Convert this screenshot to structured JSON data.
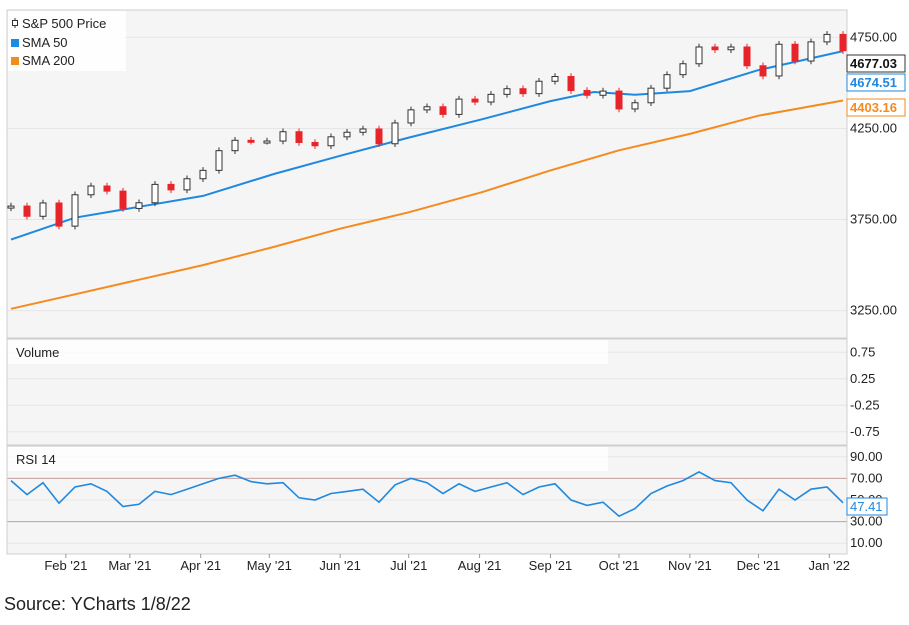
{
  "source_note": "Source: YCharts 1/8/22",
  "colors": {
    "price_up": "#333333",
    "price_down": "#e8242b",
    "sma50": "#1f88e0",
    "sma200": "#f58a1f",
    "rsi": "#1f88e0",
    "panel_bg": "#f5f5f5",
    "grid": "#e6e6e6",
    "rsi_ref": "#c9a0a0"
  },
  "x_axis_labels": [
    "Feb '21",
    "Mar '21",
    "Apr '21",
    "May '21",
    "Jun '21",
    "Jul '21",
    "Aug '21",
    "Sep '21",
    "Oct '21",
    "Nov '21",
    "Dec '21",
    "Jan '22"
  ],
  "chart_data": [
    {
      "type": "line",
      "panel": "price",
      "legend": [
        {
          "name": "S&P 500 Price",
          "icon": "candlestick-icon"
        },
        {
          "name": "SMA 50",
          "color": "#1f88e0"
        },
        {
          "name": "SMA 200",
          "color": "#f58a1f"
        }
      ],
      "y_ticks": [
        "4750.00",
        "4250.00",
        "3750.00",
        "3250.00"
      ],
      "ylim": [
        3100,
        4900
      ],
      "last_values": {
        "price": "4677.03",
        "sma50": "4674.51",
        "sma200": "4403.16"
      },
      "x_domain": [
        "2021-01-08",
        "2022-01-07"
      ],
      "series": [
        {
          "name": "S&P 500 Price",
          "points": [
            [
              "2021-01-08",
              3824
            ],
            [
              "2021-01-15",
              3768
            ],
            [
              "2021-01-22",
              3841
            ],
            [
              "2021-01-29",
              3714
            ],
            [
              "2021-02-05",
              3886
            ],
            [
              "2021-02-12",
              3934
            ],
            [
              "2021-02-19",
              3906
            ],
            [
              "2021-02-26",
              3811
            ],
            [
              "2021-03-05",
              3842
            ],
            [
              "2021-03-12",
              3943
            ],
            [
              "2021-03-19",
              3913
            ],
            [
              "2021-03-26",
              3974
            ],
            [
              "2021-04-02",
              4020
            ],
            [
              "2021-04-09",
              4128
            ],
            [
              "2021-04-16",
              4185
            ],
            [
              "2021-04-23",
              4180
            ],
            [
              "2021-04-30",
              4181
            ],
            [
              "2021-05-07",
              4232
            ],
            [
              "2021-05-14",
              4173
            ],
            [
              "2021-05-21",
              4155
            ],
            [
              "2021-05-28",
              4204
            ],
            [
              "2021-06-04",
              4229
            ],
            [
              "2021-06-11",
              4247
            ],
            [
              "2021-06-18",
              4166
            ],
            [
              "2021-06-25",
              4280
            ],
            [
              "2021-07-02",
              4352
            ],
            [
              "2021-07-09",
              4369
            ],
            [
              "2021-07-16",
              4327
            ],
            [
              "2021-07-23",
              4411
            ],
            [
              "2021-07-30",
              4395
            ],
            [
              "2021-08-06",
              4437
            ],
            [
              "2021-08-13",
              4468
            ],
            [
              "2021-08-20",
              4441
            ],
            [
              "2021-08-27",
              4509
            ],
            [
              "2021-09-03",
              4535
            ],
            [
              "2021-09-10",
              4458
            ],
            [
              "2021-09-17",
              4432
            ],
            [
              "2021-09-24",
              4455
            ],
            [
              "2021-10-01",
              4357
            ],
            [
              "2021-10-08",
              4391
            ],
            [
              "2021-10-15",
              4471
            ],
            [
              "2021-10-22",
              4545
            ],
            [
              "2021-10-29",
              4605
            ],
            [
              "2021-11-05",
              4697
            ],
            [
              "2021-11-12",
              4682
            ],
            [
              "2021-11-19",
              4697
            ],
            [
              "2021-11-26",
              4594
            ],
            [
              "2021-12-03",
              4538
            ],
            [
              "2021-12-10",
              4712
            ],
            [
              "2021-12-17",
              4620
            ],
            [
              "2021-12-24",
              4725
            ],
            [
              "2021-12-31",
              4766
            ],
            [
              "2022-01-07",
              4677
            ]
          ]
        },
        {
          "name": "SMA 50",
          "points": [
            [
              "2021-01-08",
              3640
            ],
            [
              "2021-02-05",
              3760
            ],
            [
              "2021-03-05",
              3820
            ],
            [
              "2021-04-02",
              3880
            ],
            [
              "2021-05-03",
              4000
            ],
            [
              "2021-06-01",
              4100
            ],
            [
              "2021-07-01",
              4200
            ],
            [
              "2021-08-02",
              4300
            ],
            [
              "2021-09-01",
              4400
            ],
            [
              "2021-09-20",
              4450
            ],
            [
              "2021-10-08",
              4435
            ],
            [
              "2021-11-01",
              4455
            ],
            [
              "2021-12-01",
              4570
            ],
            [
              "2022-01-07",
              4674.51
            ]
          ]
        },
        {
          "name": "SMA 200",
          "points": [
            [
              "2021-01-08",
              3260
            ],
            [
              "2021-02-05",
              3340
            ],
            [
              "2021-03-05",
              3420
            ],
            [
              "2021-04-02",
              3500
            ],
            [
              "2021-05-03",
              3600
            ],
            [
              "2021-06-01",
              3700
            ],
            [
              "2021-07-01",
              3790
            ],
            [
              "2021-08-02",
              3900
            ],
            [
              "2021-09-01",
              4020
            ],
            [
              "2021-10-01",
              4130
            ],
            [
              "2021-11-01",
              4220
            ],
            [
              "2021-12-01",
              4320
            ],
            [
              "2022-01-07",
              4403.16
            ]
          ]
        }
      ]
    },
    {
      "type": "bar",
      "panel": "volume",
      "title": "Volume",
      "y_ticks": [
        "0.75",
        "0.25",
        "-0.25",
        "-0.75"
      ],
      "ylim": [
        -1,
        1
      ],
      "values": []
    },
    {
      "type": "line",
      "panel": "rsi",
      "title": "RSI 14",
      "y_ticks": [
        "90.00",
        "70.00",
        "50.00",
        "30.00",
        "10.00"
      ],
      "ylim": [
        0,
        100
      ],
      "reference_lines": [
        70,
        30
      ],
      "last_value": "47.41",
      "series": [
        {
          "name": "RSI 14",
          "points": [
            [
              "2021-01-08",
              68
            ],
            [
              "2021-01-15",
              55
            ],
            [
              "2021-01-22",
              66
            ],
            [
              "2021-01-29",
              47
            ],
            [
              "2021-02-05",
              62
            ],
            [
              "2021-02-12",
              65
            ],
            [
              "2021-02-19",
              58
            ],
            [
              "2021-02-26",
              44
            ],
            [
              "2021-03-05",
              46
            ],
            [
              "2021-03-12",
              58
            ],
            [
              "2021-03-19",
              55
            ],
            [
              "2021-03-26",
              60
            ],
            [
              "2021-04-02",
              65
            ],
            [
              "2021-04-09",
              70
            ],
            [
              "2021-04-16",
              73
            ],
            [
              "2021-04-23",
              67
            ],
            [
              "2021-04-30",
              65
            ],
            [
              "2021-05-07",
              66
            ],
            [
              "2021-05-14",
              52
            ],
            [
              "2021-05-21",
              50
            ],
            [
              "2021-05-28",
              56
            ],
            [
              "2021-06-04",
              58
            ],
            [
              "2021-06-11",
              60
            ],
            [
              "2021-06-18",
              48
            ],
            [
              "2021-06-25",
              64
            ],
            [
              "2021-07-02",
              70
            ],
            [
              "2021-07-09",
              66
            ],
            [
              "2021-07-16",
              56
            ],
            [
              "2021-07-23",
              65
            ],
            [
              "2021-07-30",
              58
            ],
            [
              "2021-08-06",
              62
            ],
            [
              "2021-08-13",
              66
            ],
            [
              "2021-08-20",
              55
            ],
            [
              "2021-08-27",
              62
            ],
            [
              "2021-09-03",
              65
            ],
            [
              "2021-09-10",
              50
            ],
            [
              "2021-09-17",
              45
            ],
            [
              "2021-09-24",
              48
            ],
            [
              "2021-10-01",
              35
            ],
            [
              "2021-10-08",
              42
            ],
            [
              "2021-10-15",
              56
            ],
            [
              "2021-10-22",
              63
            ],
            [
              "2021-10-29",
              68
            ],
            [
              "2021-11-05",
              76
            ],
            [
              "2021-11-12",
              68
            ],
            [
              "2021-11-19",
              66
            ],
            [
              "2021-11-26",
              50
            ],
            [
              "2021-12-03",
              40
            ],
            [
              "2021-12-10",
              60
            ],
            [
              "2021-12-17",
              50
            ],
            [
              "2021-12-24",
              60
            ],
            [
              "2021-12-31",
              62
            ],
            [
              "2022-01-07",
              47.41
            ]
          ]
        }
      ]
    }
  ]
}
